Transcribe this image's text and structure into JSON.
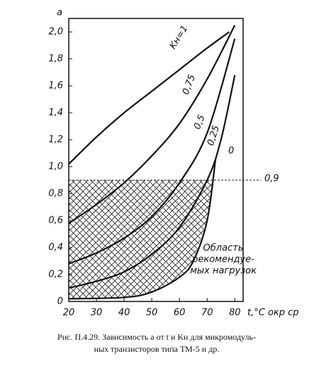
{
  "chart_data": {
    "type": "line",
    "y_label": "a",
    "x_label": "t,°C окр ср",
    "caption": [
      "Рис. П.4.29. Зависимость a от t и Kн для микромодуль-",
      "ных транзисторов типа ТМ-5 и др."
    ],
    "xlim": [
      20,
      83
    ],
    "ylim": [
      0,
      2.1
    ],
    "xticks": [
      20,
      30,
      40,
      50,
      60,
      70,
      80
    ],
    "yticks": [
      {
        "value": 0,
        "label": "0"
      },
      {
        "value": 0.2,
        "label": "0,2"
      },
      {
        "value": 0.4,
        "label": "0,4"
      },
      {
        "value": 0.6,
        "label": "0,6"
      },
      {
        "value": 0.8,
        "label": "0,8"
      },
      {
        "value": 1.0,
        "label": "1,0"
      },
      {
        "value": 1.2,
        "label": "1,2"
      },
      {
        "value": 1.4,
        "label": "1,4"
      },
      {
        "value": 1.6,
        "label": "1,6"
      },
      {
        "value": 1.8,
        "label": "1,8"
      },
      {
        "value": 2.0,
        "label": "2,0"
      }
    ],
    "grid": false,
    "threshold": {
      "value": 0.9,
      "label": "0,9"
    },
    "region_label": [
      "Область",
      "рекомендуе-",
      "мых нагрузок"
    ],
    "series": [
      {
        "name": "Kн=1",
        "color": "#111",
        "x": [
          20,
          30,
          40,
          50,
          60,
          70,
          78
        ],
        "values": [
          1.02,
          1.22,
          1.4,
          1.56,
          1.72,
          1.88,
          2.0
        ]
      },
      {
        "name": "0,75",
        "color": "#111",
        "x": [
          20,
          30,
          40,
          50,
          60,
          70,
          80
        ],
        "values": [
          0.58,
          0.72,
          0.88,
          1.08,
          1.32,
          1.65,
          2.05
        ]
      },
      {
        "name": "0,5",
        "color": "#111",
        "x": [
          20,
          30,
          40,
          50,
          60,
          70,
          80
        ],
        "values": [
          0.28,
          0.36,
          0.47,
          0.63,
          0.88,
          1.25,
          1.95
        ]
      },
      {
        "name": "0,25",
        "color": "#111",
        "x": [
          20,
          30,
          40,
          50,
          60,
          70,
          75,
          80
        ],
        "values": [
          0.1,
          0.15,
          0.22,
          0.35,
          0.55,
          0.9,
          1.2,
          1.68
        ]
      },
      {
        "name": "0",
        "color": "#111",
        "x": [
          20,
          40,
          50,
          60,
          65,
          70,
          73
        ],
        "values": [
          0.02,
          0.03,
          0.07,
          0.18,
          0.3,
          0.6,
          1.05
        ]
      }
    ]
  }
}
